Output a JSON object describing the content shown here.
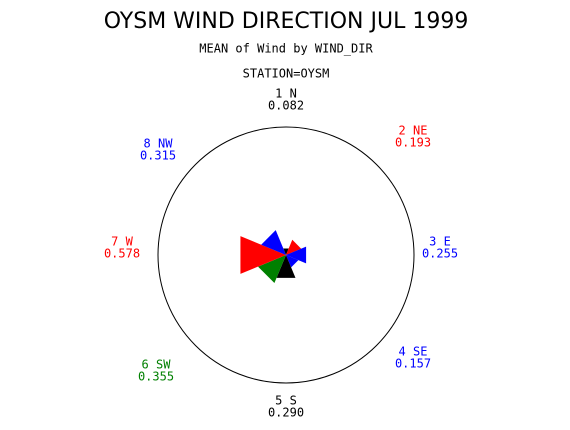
{
  "chart_data": {
    "type": "star",
    "title": "OYSM WIND DIRECTION JUL 1999",
    "subtitle": "MEAN of Wind by WIND_DIR",
    "group_label": "STATION=OYSM",
    "categories": [
      "1 N",
      "2 NE",
      "3 E",
      "4 SE",
      "5 S",
      "6 SW",
      "7 W",
      "8 NW"
    ],
    "values": [
      0.082,
      0.193,
      0.255,
      0.157,
      0.29,
      0.355,
      0.578,
      0.315
    ],
    "value_labels": [
      "0.082",
      "0.193",
      "0.255",
      "0.157",
      "0.290",
      "0.355",
      "0.578",
      "0.315"
    ],
    "colors": [
      "#000000",
      "#ff0000",
      "#0000ff",
      "#0000ff",
      "#000000",
      "#008000",
      "#ff0000",
      "#0000ff"
    ],
    "rlim": [
      0,
      1.5
    ]
  }
}
